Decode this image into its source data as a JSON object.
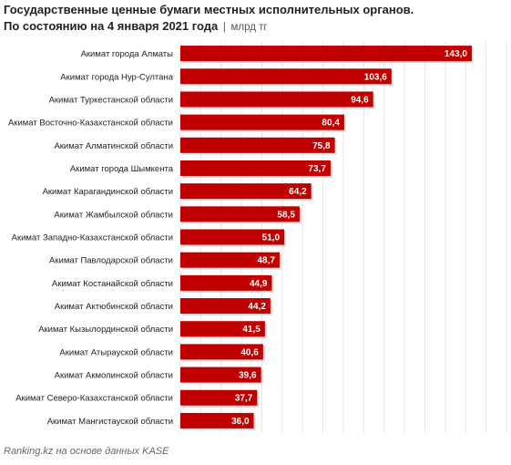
{
  "header": {
    "title_line1": "Государственные ценные бумаги местных исполнительных органов.",
    "title_line2": "По состоянию на 4 января 2021 года",
    "separator": "|",
    "unit": "млрд тг"
  },
  "footer": {
    "source": "Ranking.kz на основе данных KASE"
  },
  "colors": {
    "bar": "#c00000",
    "bar_shadow": "#b7b7b7",
    "grid": "#e6e6e6"
  },
  "chart_data": {
    "type": "bar",
    "orientation": "horizontal",
    "title": "Государственные ценные бумаги местных исполнительных органов. По состоянию на 4 января 2021 года",
    "unit": "млрд тг",
    "categories": [
      "Акимат города Алматы",
      "Акимат города Нур-Султана",
      "Акимат Туркестанской области",
      "Акимат Восточно-Казахстанской области",
      "Акимат Алматинской области",
      "Акимат города Шымкента",
      "Акимат Карагандинской области",
      "Акимат Жамбылской области",
      "Акимат Западно-Казахстанской области",
      "Акимат Павлодарской области",
      "Акимат Костанайской области",
      "Акимат Актюбинской области",
      "Акимат Кызылординской области",
      "Акимат Атырауской области",
      "Акимат Акмолинской области",
      "Акимат Северо-Казахстанской области",
      "Акимат Мангистауской области"
    ],
    "values": [
      143.0,
      103.6,
      94.6,
      80.4,
      75.8,
      73.7,
      64.2,
      58.5,
      51.0,
      48.7,
      44.9,
      44.2,
      41.5,
      40.6,
      39.6,
      37.7,
      36.0
    ],
    "value_labels": [
      "143,0",
      "103,6",
      "94,6",
      "80,4",
      "75,8",
      "73,7",
      "64,2",
      "58,5",
      "51,0",
      "48,7",
      "44,9",
      "44,2",
      "41,5",
      "40,6",
      "39,6",
      "37,7",
      "36,0"
    ],
    "xlim": [
      0,
      160
    ],
    "grid": true,
    "legend": "none"
  }
}
